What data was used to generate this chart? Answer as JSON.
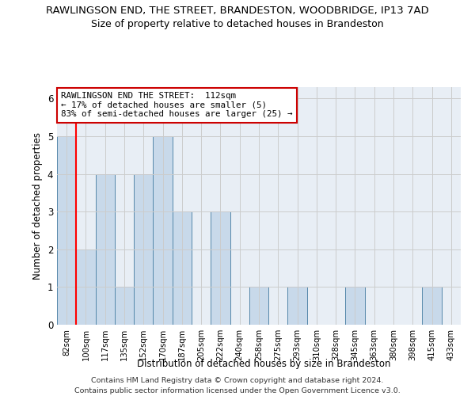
{
  "title": "RAWLINGSON END, THE STREET, BRANDESTON, WOODBRIDGE, IP13 7AD",
  "subtitle": "Size of property relative to detached houses in Brandeston",
  "xlabel": "Distribution of detached houses by size in Brandeston",
  "ylabel": "Number of detached properties",
  "categories": [
    "82sqm",
    "100sqm",
    "117sqm",
    "135sqm",
    "152sqm",
    "170sqm",
    "187sqm",
    "205sqm",
    "222sqm",
    "240sqm",
    "258sqm",
    "275sqm",
    "293sqm",
    "310sqm",
    "328sqm",
    "345sqm",
    "363sqm",
    "380sqm",
    "398sqm",
    "415sqm",
    "433sqm"
  ],
  "values": [
    5,
    2,
    4,
    1,
    4,
    5,
    3,
    0,
    3,
    0,
    1,
    0,
    1,
    0,
    0,
    1,
    0,
    0,
    0,
    1,
    0
  ],
  "bar_color": "#c8d9ea",
  "bar_edge_color": "#5588aa",
  "red_line_index": 0.5,
  "annotation_line1": "RAWLINGSON END THE STREET:  112sqm",
  "annotation_line2": "← 17% of detached houses are smaller (5)",
  "annotation_line3": "83% of semi-detached houses are larger (25) →",
  "annotation_box_color": "#ffffff",
  "annotation_box_edge": "#cc0000",
  "ylim": [
    0,
    6.3
  ],
  "yticks": [
    0,
    1,
    2,
    3,
    4,
    5,
    6
  ],
  "bg_color": "#e8eef5",
  "grid_color": "#cccccc",
  "footer1": "Contains HM Land Registry data © Crown copyright and database right 2024.",
  "footer2": "Contains public sector information licensed under the Open Government Licence v3.0."
}
